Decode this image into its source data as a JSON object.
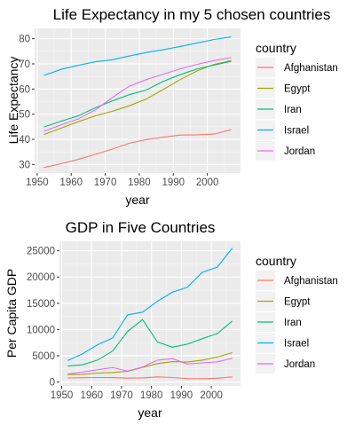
{
  "colors": {
    "panel_bg": "#ebebeb",
    "grid_major": "#ffffff",
    "grid_minor": "#f5f5f5",
    "axis_text": "#4d4d4d",
    "title_text": "#000000",
    "legend_key_bg": "#f2f2f2"
  },
  "chart_data": [
    {
      "type": "line",
      "title": "Life Expectancy in my 5 chosen countries",
      "xlabel": "year",
      "ylabel": "Life Expectancy",
      "xlim": [
        1949.25,
        2009.75
      ],
      "ylim": [
        26.6,
        84.1
      ],
      "xticks": [
        1950,
        1960,
        1970,
        1980,
        1990,
        2000
      ],
      "yticks": [
        30,
        40,
        50,
        60,
        70,
        80
      ],
      "grid": true,
      "legend": {
        "title": "country",
        "position": "right"
      },
      "x": [
        1952,
        1957,
        1962,
        1967,
        1972,
        1977,
        1982,
        1987,
        1992,
        1997,
        2002,
        2007
      ],
      "series": [
        {
          "name": "Afghanistan",
          "color": "#F8766D",
          "values": [
            28.8,
            30.3,
            32.0,
            34.0,
            36.1,
            38.4,
            39.9,
            40.8,
            41.7,
            41.8,
            42.1,
            43.8
          ]
        },
        {
          "name": "Egypt",
          "color": "#A3A500",
          "values": [
            41.9,
            44.4,
            47.0,
            49.3,
            51.1,
            53.3,
            56.0,
            59.8,
            63.7,
            67.2,
            69.8,
            71.3
          ]
        },
        {
          "name": "Iran",
          "color": "#00BF7D",
          "values": [
            44.9,
            47.2,
            49.3,
            52.5,
            55.2,
            57.7,
            59.6,
            63.0,
            65.7,
            68.0,
            69.5,
            71.0
          ]
        },
        {
          "name": "Israel",
          "color": "#00B0F6",
          "values": [
            65.4,
            67.8,
            69.4,
            70.8,
            71.6,
            73.1,
            74.5,
            75.6,
            76.9,
            78.3,
            79.7,
            80.7
          ]
        },
        {
          "name": "Jordan",
          "color": "#E76BF3",
          "values": [
            43.2,
            45.7,
            48.1,
            51.6,
            56.5,
            61.1,
            63.7,
            65.9,
            68.0,
            69.8,
            71.3,
            72.5
          ]
        }
      ]
    },
    {
      "type": "line",
      "title": "GDP in Five Countries",
      "xlabel": "year",
      "ylabel": "Per Capita GDP",
      "xlim": [
        1949.25,
        2009.75
      ],
      "ylim": [
        -750,
        26800
      ],
      "xticks": [
        1950,
        1960,
        1970,
        1980,
        1990,
        2000
      ],
      "yticks": [
        0,
        5000,
        10000,
        15000,
        20000,
        25000
      ],
      "grid": true,
      "legend": {
        "title": "country",
        "position": "right"
      },
      "x": [
        1952,
        1957,
        1962,
        1967,
        1972,
        1977,
        1982,
        1987,
        1992,
        1997,
        2002,
        2007
      ],
      "series": [
        {
          "name": "Afghanistan",
          "color": "#F8766D",
          "values": [
            779,
            821,
            853,
            836,
            740,
            786,
            978,
            852,
            649,
            635,
            727,
            975
          ]
        },
        {
          "name": "Egypt",
          "color": "#A3A500",
          "values": [
            1419,
            1459,
            1693,
            1815,
            2024,
            2785,
            3504,
            3885,
            3795,
            4173,
            4755,
            5581
          ]
        },
        {
          "name": "Iran",
          "color": "#00BF7D",
          "values": [
            3035,
            3290,
            4187,
            5906,
            9614,
            11889,
            7608,
            6643,
            7235,
            8264,
            9241,
            11606
          ]
        },
        {
          "name": "Israel",
          "color": "#00B0F6",
          "values": [
            4087,
            5386,
            7106,
            8394,
            12787,
            13306,
            15367,
            17122,
            18051,
            20897,
            21906,
            25523
          ]
        },
        {
          "name": "Jordan",
          "color": "#E76BF3",
          "values": [
            1547,
            1886,
            2348,
            2742,
            2110,
            2852,
            4161,
            4449,
            3431,
            3646,
            3845,
            4519
          ]
        }
      ]
    }
  ]
}
